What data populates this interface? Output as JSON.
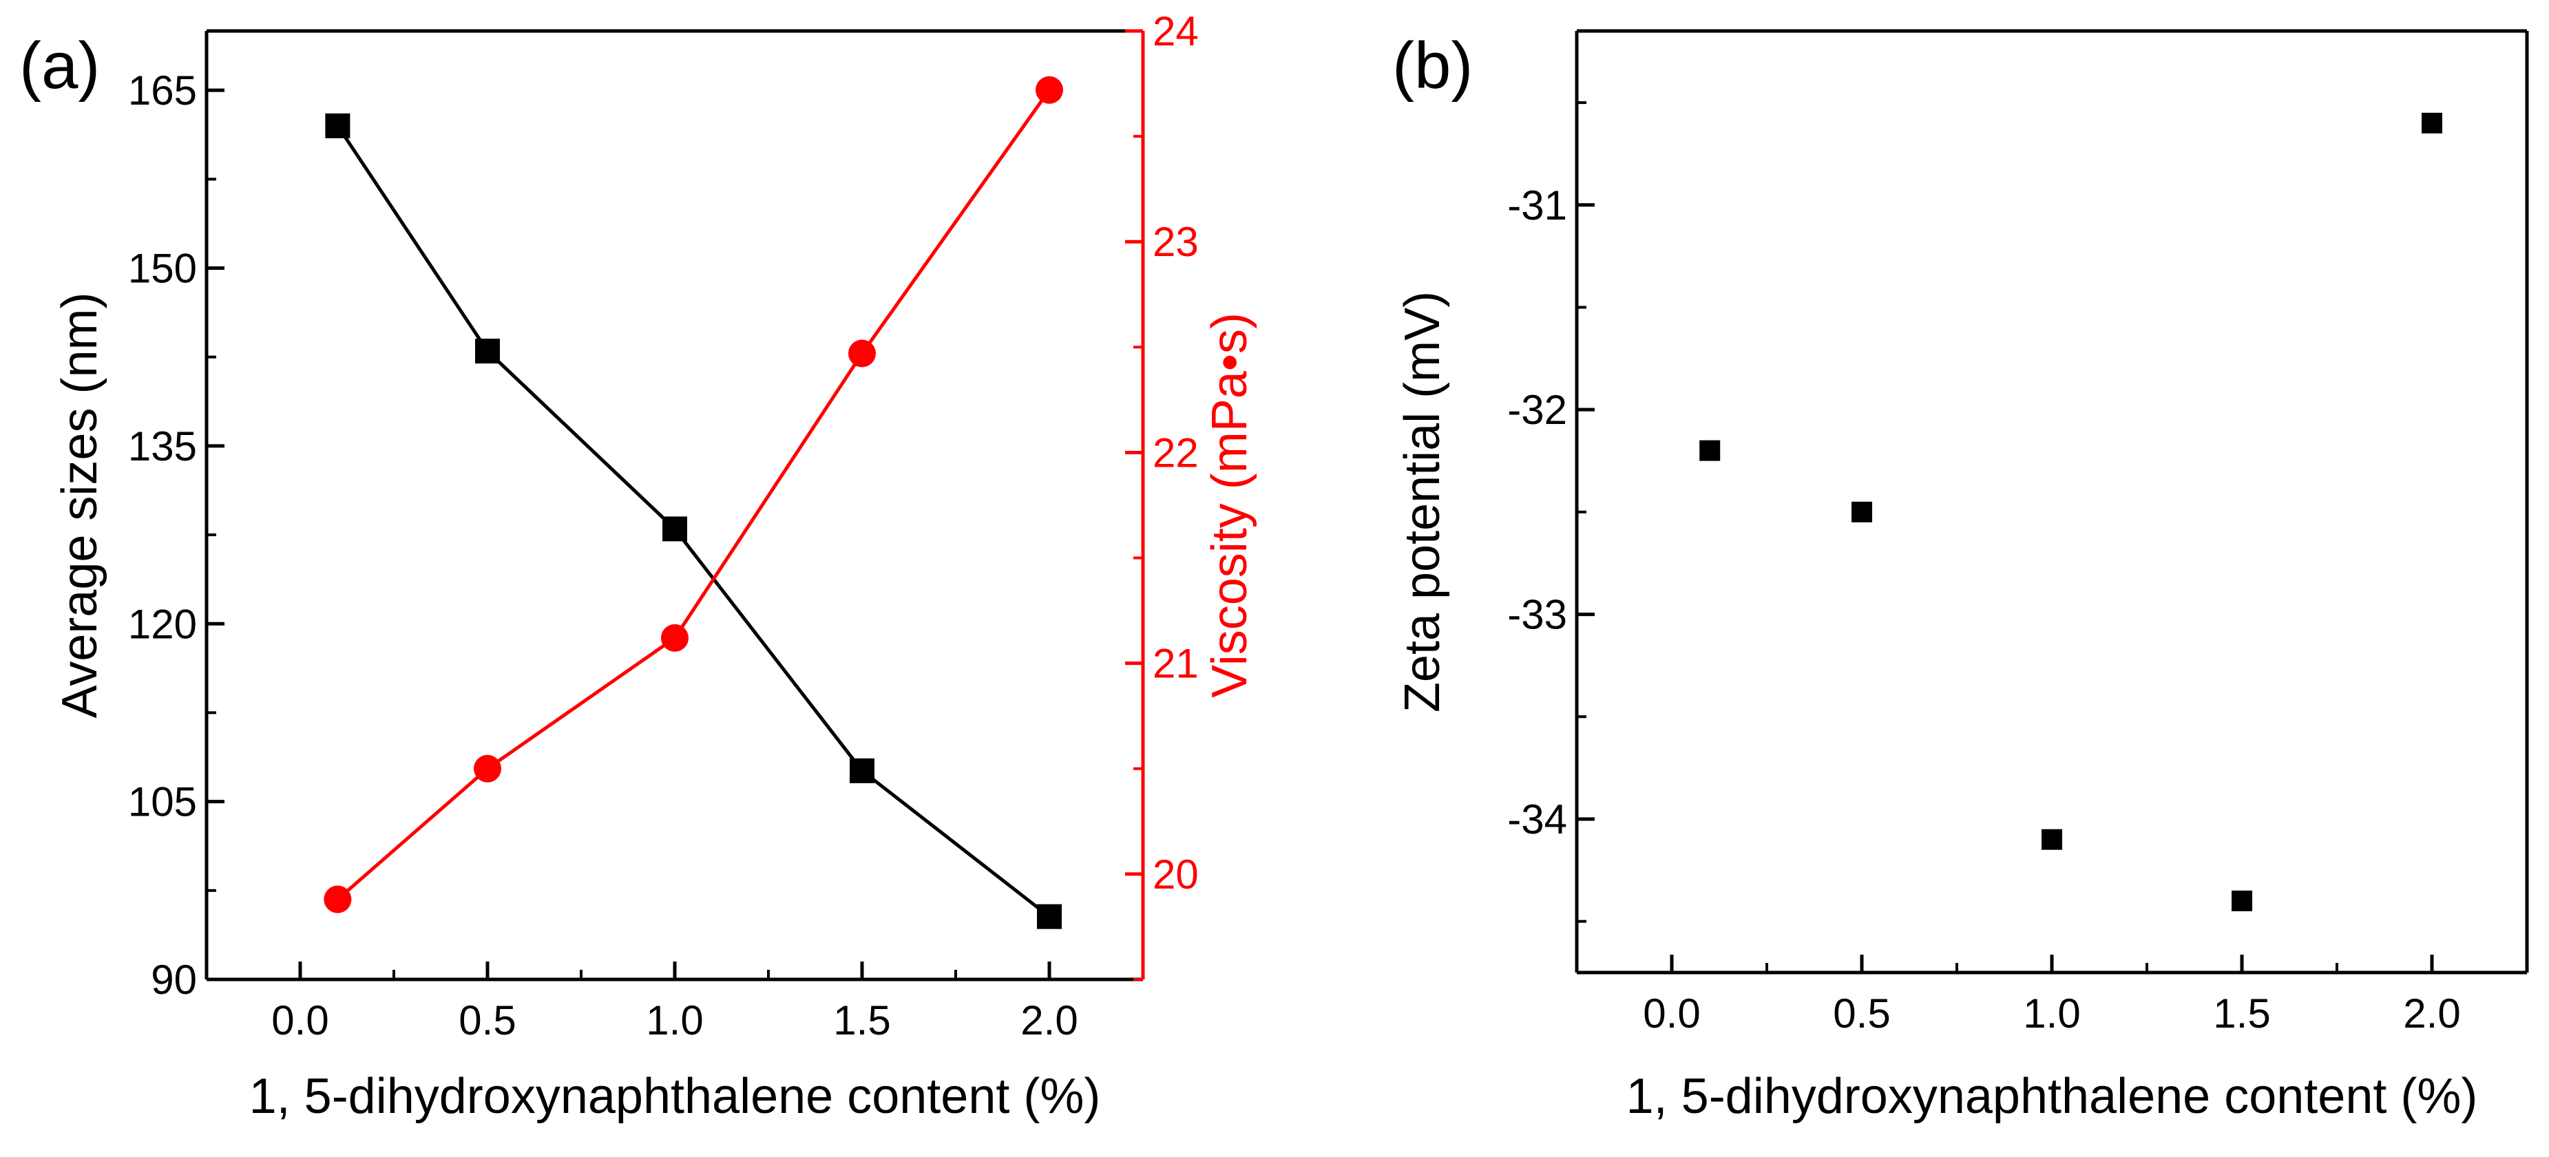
{
  "panels": {
    "a": {
      "label": "(a)"
    },
    "b": {
      "label": "(b)"
    }
  },
  "colors": {
    "black": "#000000",
    "red": "#ff0000"
  },
  "chart_data": [
    {
      "id": "a",
      "type": "line",
      "xlabel": "1, 5-dihydroxynaphthalene content (%)",
      "ylabel": "Average sizes (nm)",
      "y2label": "Viscosity (mPa•s)",
      "xlim": [
        -0.25,
        2.25
      ],
      "ylim": [
        90,
        170
      ],
      "y2lim": [
        19.5,
        24
      ],
      "xticks": [
        0.0,
        0.5,
        1.0,
        1.5,
        2.0
      ],
      "xtick_labels": [
        "0.0",
        "0.5",
        "1.0",
        "1.5",
        "2.0"
      ],
      "yticks": [
        90,
        105,
        120,
        135,
        150,
        165
      ],
      "ytick_labels": [
        "90",
        "105",
        "120",
        "135",
        "150",
        "165"
      ],
      "y2ticks": [
        20,
        21,
        22,
        23,
        24
      ],
      "y2tick_labels": [
        "20",
        "21",
        "22",
        "23",
        "24"
      ],
      "series": [
        {
          "name": "Average sizes",
          "axis": "left",
          "marker": "square",
          "color": "#000000",
          "x": [
            0.1,
            0.5,
            1.0,
            1.5,
            2.0
          ],
          "values": [
            162,
            143,
            128,
            107.6,
            95.3
          ]
        },
        {
          "name": "Viscosity",
          "axis": "right",
          "marker": "circle",
          "color": "#ff0000",
          "x": [
            0.1,
            0.5,
            1.0,
            1.5,
            2.0
          ],
          "values": [
            19.88,
            20.5,
            21.12,
            22.47,
            23.72
          ]
        }
      ]
    },
    {
      "id": "b",
      "type": "scatter",
      "xlabel": "1, 5-dihydroxynaphthalene content (%)",
      "ylabel": "Zeta potential (mV)",
      "xlim": [
        -0.25,
        2.25
      ],
      "ylim": [
        -34.75,
        -30.15
      ],
      "xticks": [
        0.0,
        0.5,
        1.0,
        1.5,
        2.0
      ],
      "xtick_labels": [
        "0.0",
        "0.5",
        "1.0",
        "1.5",
        "2.0"
      ],
      "yticks": [
        -34,
        -33,
        -32,
        -31
      ],
      "ytick_labels": [
        "-34",
        "-33",
        "-32",
        "-31"
      ],
      "series": [
        {
          "name": "Zeta potential",
          "axis": "left",
          "marker": "square",
          "color": "#000000",
          "x": [
            0.1,
            0.5,
            1.0,
            1.5,
            2.0
          ],
          "values": [
            -32.2,
            -32.5,
            -34.1,
            -34.4,
            -30.6
          ]
        }
      ]
    }
  ]
}
